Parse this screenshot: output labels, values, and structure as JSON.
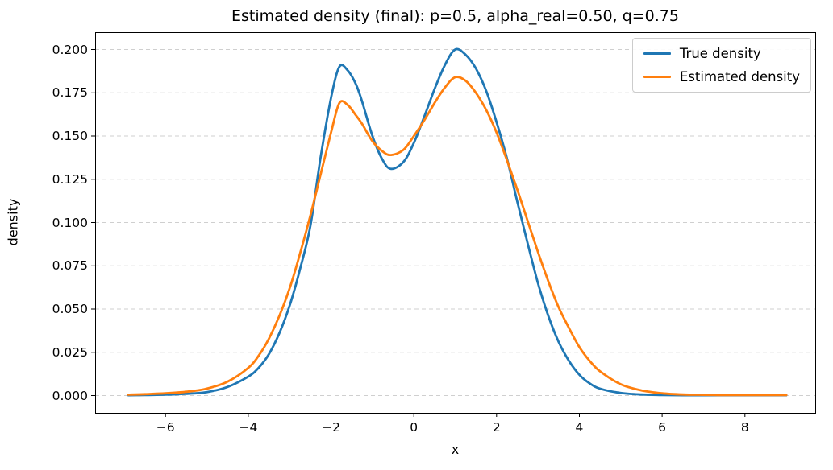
{
  "chart_data": {
    "type": "line",
    "title": "Estimated density (final): p=0.5, alpha_real=0.50, q=0.75",
    "xlabel": "x",
    "ylabel": "density",
    "xlim": [
      -7.7,
      9.7
    ],
    "ylim": [
      -0.01,
      0.21
    ],
    "xticks": [
      -6,
      -4,
      -2,
      0,
      2,
      4,
      6,
      8
    ],
    "xtick_labels": [
      "−6",
      "−4",
      "−2",
      "0",
      "2",
      "4",
      "6",
      "8"
    ],
    "yticks": [
      0.0,
      0.025,
      0.05,
      0.075,
      0.1,
      0.125,
      0.15,
      0.175,
      0.2
    ],
    "ytick_labels": [
      "0.000",
      "0.025",
      "0.050",
      "0.075",
      "0.100",
      "0.125",
      "0.150",
      "0.175",
      "0.200"
    ],
    "grid": "horizontal-dashed",
    "grid_color": "#cfcfcf",
    "legend_position": "upper right",
    "series": [
      {
        "name": "True density",
        "color": "#1f77b4",
        "x": [
          -6.9,
          -6.5,
          -6.0,
          -5.5,
          -5.0,
          -4.5,
          -4.0,
          -3.75,
          -3.5,
          -3.25,
          -3.0,
          -2.75,
          -2.5,
          -2.25,
          -2.0,
          -1.8,
          -1.6,
          -1.4,
          -1.25,
          -1.0,
          -0.75,
          -0.55,
          -0.25,
          0.0,
          0.25,
          0.5,
          0.75,
          1.0,
          1.25,
          1.5,
          1.75,
          2.0,
          2.25,
          2.5,
          2.75,
          3.0,
          3.25,
          3.5,
          3.75,
          4.0,
          4.25,
          4.5,
          5.0,
          5.5,
          6.0,
          6.5,
          7.0,
          7.5,
          8.0,
          8.5,
          9.0
        ],
        "y": [
          0.0002,
          0.0003,
          0.0005,
          0.001,
          0.002,
          0.005,
          0.011,
          0.016,
          0.024,
          0.036,
          0.052,
          0.073,
          0.098,
          0.138,
          0.172,
          0.19,
          0.188,
          0.18,
          0.17,
          0.15,
          0.136,
          0.131,
          0.135,
          0.146,
          0.161,
          0.177,
          0.191,
          0.2,
          0.197,
          0.189,
          0.176,
          0.158,
          0.137,
          0.112,
          0.088,
          0.065,
          0.046,
          0.031,
          0.02,
          0.012,
          0.007,
          0.004,
          0.0015,
          0.0006,
          0.0003,
          0.0002,
          0.0002,
          0.0002,
          0.0002,
          0.0002,
          0.0002
        ]
      },
      {
        "name": "Estimated density",
        "color": "#ff7f0e",
        "x": [
          -6.9,
          -6.5,
          -6.0,
          -5.5,
          -5.0,
          -4.5,
          -4.0,
          -3.75,
          -3.5,
          -3.25,
          -3.0,
          -2.75,
          -2.5,
          -2.25,
          -2.0,
          -1.8,
          -1.6,
          -1.4,
          -1.25,
          -1.0,
          -0.75,
          -0.55,
          -0.25,
          0.0,
          0.25,
          0.5,
          0.75,
          1.0,
          1.25,
          1.5,
          1.75,
          2.0,
          2.25,
          2.5,
          2.75,
          3.0,
          3.25,
          3.5,
          3.75,
          4.0,
          4.25,
          4.5,
          5.0,
          5.5,
          6.0,
          6.5,
          7.0,
          7.5,
          8.0,
          8.5,
          9.0
        ],
        "y": [
          0.0005,
          0.0008,
          0.0013,
          0.0022,
          0.004,
          0.008,
          0.016,
          0.023,
          0.033,
          0.046,
          0.062,
          0.082,
          0.104,
          0.128,
          0.152,
          0.169,
          0.168,
          0.162,
          0.157,
          0.147,
          0.141,
          0.139,
          0.142,
          0.15,
          0.159,
          0.169,
          0.178,
          0.184,
          0.182,
          0.175,
          0.165,
          0.152,
          0.136,
          0.119,
          0.101,
          0.083,
          0.066,
          0.051,
          0.039,
          0.028,
          0.02,
          0.014,
          0.0065,
          0.003,
          0.0013,
          0.0006,
          0.0004,
          0.0003,
          0.0003,
          0.0003,
          0.0003
        ]
      }
    ]
  }
}
